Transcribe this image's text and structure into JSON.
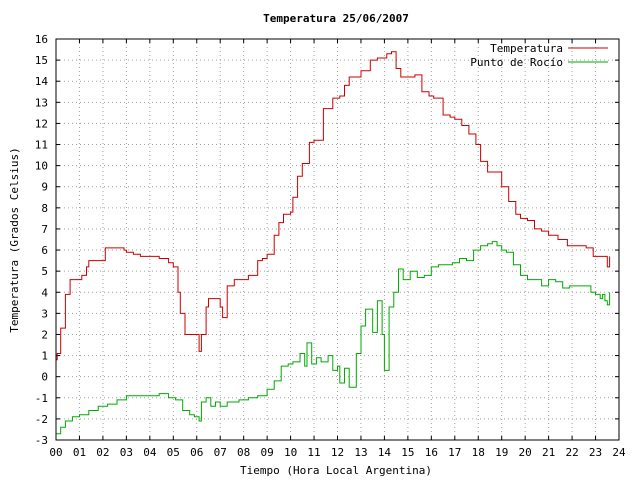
{
  "chart_data": {
    "type": "line",
    "title": "Temperatura 25/06/2007",
    "xlabel": "Tiempo (Hora Local Argentina)",
    "ylabel": "Temperatura (Grados Celsius)",
    "xlim": [
      0,
      24
    ],
    "ylim": [
      -3,
      16
    ],
    "x_ticks": [
      0,
      1,
      2,
      3,
      4,
      5,
      6,
      7,
      8,
      9,
      10,
      11,
      12,
      13,
      14,
      15,
      16,
      17,
      18,
      19,
      20,
      21,
      22,
      23,
      24
    ],
    "x_tick_labels": [
      "00",
      "01",
      "02",
      "03",
      "04",
      "05",
      "06",
      "07",
      "08",
      "09",
      "10",
      "11",
      "12",
      "13",
      "14",
      "15",
      "16",
      "17",
      "18",
      "19",
      "20",
      "21",
      "22",
      "23",
      "24"
    ],
    "y_ticks": [
      -3,
      -2,
      -1,
      0,
      1,
      2,
      3,
      4,
      5,
      6,
      7,
      8,
      9,
      10,
      11,
      12,
      13,
      14,
      15,
      16
    ],
    "grid": true,
    "legend_position": "top-right",
    "series": [
      {
        "name": "Temperatura",
        "color": "#cc0000",
        "x": [
          0,
          0.05,
          0.2,
          0.4,
          0.6,
          0.9,
          1.1,
          1.3,
          1.4,
          1.8,
          2.1,
          2.5,
          2.9,
          3.0,
          3.3,
          3.6,
          4.0,
          4.4,
          4.8,
          5.0,
          5.2,
          5.3,
          5.5,
          5.8,
          6.0,
          6.1,
          6.2,
          6.4,
          6.5,
          6.9,
          7.0,
          7.1,
          7.3,
          7.6,
          7.9,
          8.2,
          8.6,
          8.8,
          9.0,
          9.3,
          9.5,
          9.7,
          10.0,
          10.1,
          10.3,
          10.5,
          10.8,
          11.0,
          11.1,
          11.4,
          11.8,
          12.1,
          12.3,
          12.5,
          12.9,
          13.0,
          13.4,
          13.7,
          14.0,
          14.1,
          14.3,
          14.5,
          14.7,
          15.0,
          15.3,
          15.6,
          15.9,
          16.1,
          16.5,
          16.8,
          17.0,
          17.3,
          17.6,
          17.9,
          18.1,
          18.4,
          18.7,
          19.0,
          19.3,
          19.6,
          19.8,
          20.1,
          20.4,
          20.7,
          21.0,
          21.4,
          21.8,
          22.2,
          22.6,
          22.9,
          23.2,
          23.4,
          23.5,
          23.6
        ],
        "values": [
          0.8,
          1.1,
          2.3,
          3.9,
          4.6,
          4.6,
          4.8,
          5.2,
          5.5,
          5.5,
          6.1,
          6.1,
          6.0,
          5.9,
          5.8,
          5.7,
          5.7,
          5.6,
          5.4,
          5.2,
          4.0,
          3.0,
          2.0,
          2.0,
          2.0,
          1.2,
          2.0,
          3.3,
          3.7,
          3.7,
          3.3,
          2.8,
          4.3,
          4.6,
          4.6,
          4.8,
          5.5,
          5.6,
          5.8,
          6.7,
          7.3,
          7.7,
          7.8,
          8.5,
          9.5,
          10.1,
          11.1,
          11.2,
          11.2,
          12.7,
          13.2,
          13.3,
          13.8,
          14.2,
          14.2,
          14.5,
          15.0,
          15.1,
          15.1,
          15.3,
          15.4,
          14.6,
          14.2,
          14.2,
          14.3,
          13.5,
          13.3,
          13.2,
          12.4,
          12.3,
          12.2,
          11.9,
          11.5,
          11.0,
          10.2,
          9.7,
          9.7,
          9.0,
          8.3,
          7.7,
          7.5,
          7.4,
          7.0,
          6.9,
          6.7,
          6.5,
          6.2,
          6.2,
          6.1,
          5.7,
          5.7,
          5.7,
          5.2,
          5.7
        ]
      },
      {
        "name": "Punto de Rocío",
        "color": "#00aa00",
        "x": [
          0,
          0.2,
          0.4,
          0.7,
          1.0,
          1.4,
          1.8,
          2.2,
          2.6,
          3.0,
          3.5,
          4.0,
          4.4,
          4.8,
          5.1,
          5.4,
          5.7,
          5.9,
          6.1,
          6.2,
          6.4,
          6.6,
          6.8,
          7.0,
          7.3,
          7.8,
          8.2,
          8.6,
          9.0,
          9.3,
          9.6,
          9.9,
          10.1,
          10.4,
          10.6,
          10.7,
          10.9,
          11.1,
          11.3,
          11.6,
          11.8,
          12.0,
          12.1,
          12.3,
          12.5,
          12.8,
          13.0,
          13.2,
          13.5,
          13.7,
          13.9,
          14.0,
          14.2,
          14.4,
          14.6,
          14.8,
          15.1,
          15.4,
          15.7,
          16.0,
          16.3,
          16.6,
          16.9,
          17.2,
          17.5,
          17.8,
          18.1,
          18.4,
          18.6,
          18.8,
          19.0,
          19.2,
          19.5,
          19.8,
          20.1,
          20.4,
          20.7,
          21.0,
          21.3,
          21.6,
          21.9,
          22.2,
          22.5,
          22.8,
          23.0,
          23.2,
          23.3,
          23.4,
          23.5,
          23.6
        ],
        "values": [
          -2.7,
          -2.4,
          -2.1,
          -1.9,
          -1.8,
          -1.6,
          -1.4,
          -1.3,
          -1.1,
          -0.9,
          -0.9,
          -0.9,
          -0.8,
          -1.0,
          -1.1,
          -1.6,
          -1.8,
          -1.9,
          -2.1,
          -1.2,
          -1.0,
          -1.4,
          -1.2,
          -1.4,
          -1.2,
          -1.1,
          -1.0,
          -0.9,
          -0.6,
          -0.2,
          0.5,
          0.6,
          0.7,
          1.1,
          0.5,
          1.6,
          0.6,
          0.9,
          0.7,
          1.0,
          0.3,
          0.5,
          -0.3,
          0.4,
          -0.5,
          1.1,
          2.4,
          3.2,
          2.1,
          3.6,
          2.0,
          0.3,
          3.3,
          4.0,
          5.1,
          4.6,
          5.0,
          4.7,
          4.8,
          5.2,
          5.3,
          5.3,
          5.4,
          5.6,
          5.5,
          6.0,
          6.2,
          6.3,
          6.4,
          6.2,
          6.0,
          5.9,
          5.3,
          4.8,
          4.6,
          4.6,
          4.3,
          4.6,
          4.5,
          4.2,
          4.3,
          4.3,
          4.3,
          4.0,
          3.9,
          3.7,
          3.9,
          3.6,
          3.4,
          4.0
        ]
      }
    ]
  }
}
